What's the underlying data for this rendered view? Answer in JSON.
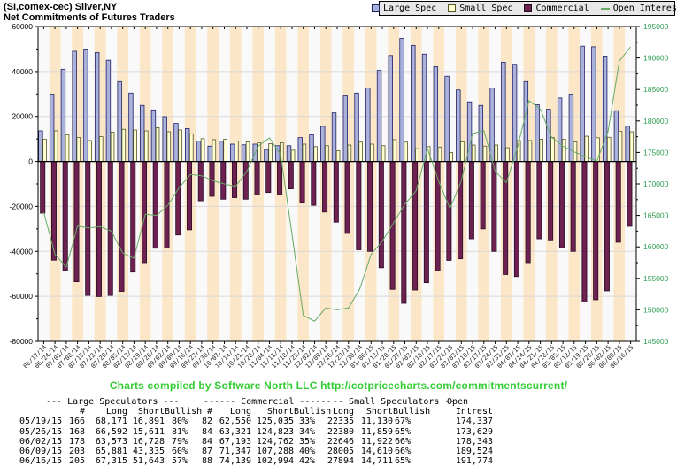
{
  "header": {
    "title_line1": "(SI,comex-cec) Silver,NY",
    "title_line2": "Net Commitments of Futures Traders"
  },
  "legend": {
    "items": [
      {
        "label": "Large Spec",
        "swatch": "square",
        "fill": "#aab2dc",
        "border": "#202066"
      },
      {
        "label": "Small Spec",
        "swatch": "square",
        "fill": "#ffffd0",
        "border": "#55552a"
      },
      {
        "label": "Commercial",
        "swatch": "square",
        "fill": "#6d2150",
        "border": "#2a0a24"
      },
      {
        "label": "Open Interest",
        "swatch": "line",
        "fill": "#66aa66",
        "border": "#66aa66"
      }
    ]
  },
  "colors": {
    "stripe_peach": "#fbe6c8",
    "stripe_white": "#f9f9f9",
    "gridline": "#d9d9d9",
    "large_spec_fill": "#aab2dc",
    "large_spec_border": "#202066",
    "small_spec_fill": "#ffffd0",
    "small_spec_border": "#55552a",
    "commercial_fill": "#6d2150",
    "commercial_border": "#2a0a24",
    "open_interest_line": "#66aa66",
    "right_axis_text": "#2f9e54",
    "caption_green": "#33cc33",
    "axis_text": "#000000",
    "x_label_text": "#222222"
  },
  "chart_data": {
    "type": "bar",
    "title": "Net Commitments of Futures Traders",
    "left_axis": {
      "label": "",
      "min": -80000,
      "max": 60000,
      "tick_step": 20000,
      "minor_step": 10000
    },
    "right_axis": {
      "label": "Open Interest",
      "min": 145000,
      "max": 195000,
      "tick_step": 5000,
      "minor_step": 2500
    },
    "grid": true,
    "legend_position": "top-right",
    "categories": [
      "06/17/14",
      "06/24/14",
      "07/01/14",
      "07/08/14",
      "07/15/14",
      "07/22/14",
      "07/29/14",
      "08/05/14",
      "08/12/14",
      "08/19/14",
      "08/26/14",
      "09/02/14",
      "09/09/14",
      "09/16/14",
      "09/23/14",
      "09/30/14",
      "10/07/14",
      "10/14/14",
      "10/21/14",
      "10/28/14",
      "11/04/14",
      "11/11/14",
      "11/18/14",
      "11/25/14",
      "12/02/14",
      "12/09/14",
      "12/16/14",
      "12/23/14",
      "12/30/14",
      "01/06/15",
      "01/13/15",
      "01/20/15",
      "01/27/15",
      "02/03/15",
      "02/10/15",
      "02/17/15",
      "02/24/15",
      "03/03/15",
      "03/10/15",
      "03/17/15",
      "03/24/15",
      "03/31/15",
      "04/07/15",
      "04/14/15",
      "04/21/15",
      "04/28/15",
      "05/05/15",
      "05/12/15",
      "05/19/15",
      "05/26/15",
      "06/02/15",
      "06/09/15",
      "06/16/15"
    ],
    "series": [
      {
        "name": "Large Spec",
        "axis": "left",
        "render": "bar",
        "values": [
          13600,
          29900,
          41000,
          49000,
          50000,
          48400,
          45000,
          35500,
          30400,
          24900,
          22900,
          19900,
          16900,
          14600,
          9000,
          6800,
          9000,
          7700,
          7400,
          7700,
          5300,
          7000,
          7000,
          10600,
          11900,
          15600,
          21600,
          29100,
          30400,
          32600,
          40500,
          47100,
          54700,
          51600,
          47700,
          42100,
          37900,
          31800,
          26500,
          24900,
          32600,
          44100,
          43200,
          35500,
          25200,
          23200,
          28200,
          29900,
          51280,
          50981,
          46845,
          22546,
          15672
        ]
      },
      {
        "name": "Small Spec",
        "axis": "left",
        "render": "bar",
        "values": [
          9900,
          13600,
          11900,
          10600,
          9300,
          11000,
          13000,
          14300,
          14000,
          13600,
          15000,
          13200,
          14000,
          12300,
          10100,
          9700,
          9900,
          9000,
          8700,
          8300,
          7900,
          8300,
          5000,
          7700,
          6600,
          7000,
          4800,
          7300,
          8600,
          7700,
          7000,
          9700,
          8600,
          5700,
          6600,
          6400,
          4000,
          8700,
          7300,
          6800,
          7300,
          6100,
          9300,
          9300,
          9900,
          10600,
          9900,
          8700,
          11205,
          10521,
          10724,
          13395,
          13183
        ]
      },
      {
        "name": "Commercial",
        "axis": "left",
        "render": "bar",
        "values": [
          -23000,
          -43900,
          -48500,
          -53500,
          -59600,
          -60100,
          -59600,
          -57800,
          -49200,
          -45000,
          -38600,
          -38400,
          -32700,
          -30400,
          -17500,
          -15500,
          -16800,
          -16100,
          -16800,
          -14800,
          -13800,
          -14800,
          -12200,
          -18500,
          -19500,
          -22500,
          -27000,
          -32000,
          -39300,
          -40000,
          -47300,
          -56900,
          -63100,
          -57200,
          -53900,
          -48600,
          -44000,
          -43300,
          -34400,
          -30000,
          -40000,
          -50300,
          -51200,
          -45000,
          -34400,
          -34900,
          -38400,
          -40000,
          -62485,
          -61502,
          -57569,
          -35941,
          -28855
        ]
      },
      {
        "name": "Open Interest",
        "axis": "right",
        "render": "line",
        "values": [
          165500,
          158800,
          156800,
          163300,
          163000,
          163200,
          162500,
          159000,
          158200,
          165200,
          165000,
          166600,
          169400,
          171500,
          171300,
          170500,
          170000,
          169600,
          172000,
          176000,
          177300,
          174600,
          162000,
          149100,
          148200,
          150300,
          150000,
          150300,
          153300,
          158800,
          160900,
          163800,
          166800,
          168900,
          175600,
          170400,
          166100,
          170500,
          178000,
          178500,
          172000,
          170200,
          176000,
          183200,
          181900,
          177400,
          176000,
          175100,
          174337,
          173629,
          178343,
          189524,
          191774
        ]
      }
    ]
  },
  "caption": {
    "text": "Charts compiled by Software North LLC",
    "url": "http://cotpricecharts.com/commitmentscurrent/"
  },
  "table": {
    "group_headers": {
      "large": "--- Large Speculators ---",
      "commercial": "------ Commercial ------",
      "small": "-- Small Speculators --",
      "open": "Open"
    },
    "col_headers": [
      "",
      "#",
      "Long",
      "Short",
      "Bullish",
      "#",
      "Long",
      "Short",
      "Bullish",
      "Long",
      "Short",
      "Bullish",
      "Intrest"
    ],
    "rows": [
      [
        "05/19/15",
        "166",
        "68,171",
        "16,891",
        "80%",
        "82",
        "62,550",
        "125,035",
        "33%",
        "22335",
        "11,130",
        "67%",
        "174,337"
      ],
      [
        "05/26/15",
        "168",
        "66,592",
        "15,611",
        "81%",
        "84",
        "63,321",
        "124,823",
        "34%",
        "22380",
        "11,859",
        "65%",
        "173,629"
      ],
      [
        "06/02/15",
        "178",
        "63,573",
        "16,728",
        "79%",
        "84",
        "67,193",
        "124,762",
        "35%",
        "22646",
        "11,922",
        "66%",
        "178,343"
      ],
      [
        "06/09/15",
        "203",
        "65,881",
        "43,335",
        "60%",
        "87",
        "71,347",
        "107,288",
        "40%",
        "28005",
        "14,610",
        "66%",
        "189,524"
      ],
      [
        "06/16/15",
        "205",
        "67,315",
        "51,643",
        "57%",
        "88",
        "74,139",
        "102,994",
        "42%",
        "27894",
        "14,711",
        "65%",
        "191,774"
      ]
    ]
  }
}
